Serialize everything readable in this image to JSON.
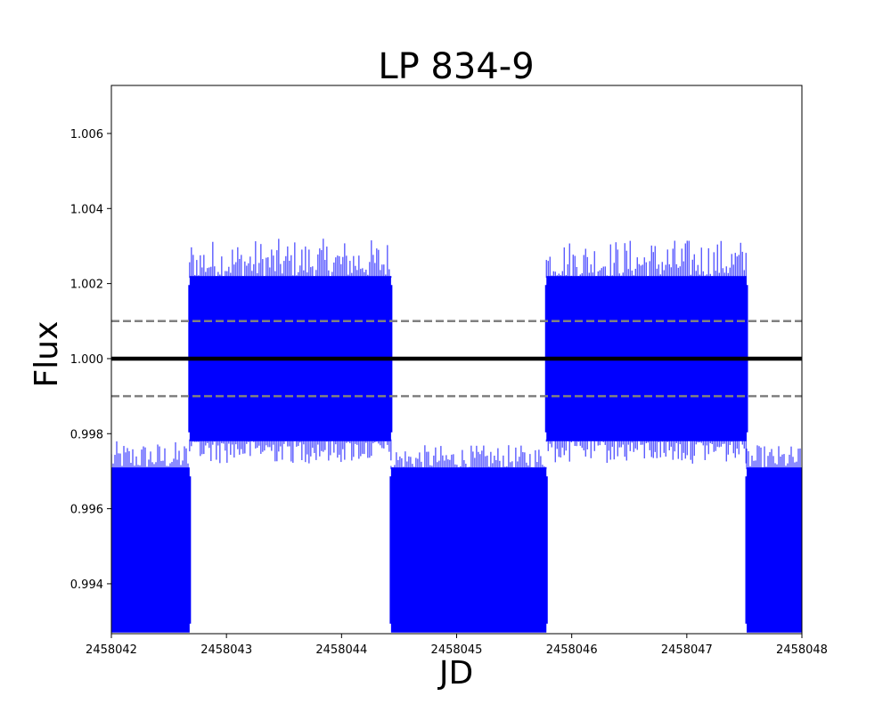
{
  "chart_data": {
    "type": "scatter",
    "title": "LP 834-9",
    "xlabel": "JD",
    "ylabel": "Flux",
    "xlim": [
      2458042,
      2458048
    ],
    "ylim": [
      0.99267,
      1.00728
    ],
    "x_ticks": [
      2458042,
      2458043,
      2458044,
      2458045,
      2458046,
      2458047,
      2458048
    ],
    "y_ticks": [
      0.994,
      0.996,
      0.998,
      1.0,
      1.002,
      1.004,
      1.006
    ],
    "x_tick_labels": [
      "2458042",
      "2458043",
      "2458044",
      "2458045",
      "2458046",
      "2458047",
      "2458048"
    ],
    "y_tick_labels": [
      "0.994",
      "0.996",
      "0.998",
      "1.000",
      "1.002",
      "1.004",
      "1.006"
    ],
    "grid": false,
    "series": [
      {
        "color": "#0000ff",
        "segments": [
          {
            "x_start": 2458042.0,
            "x_end": 2458042.68,
            "center": 0.995,
            "band_low": 0.9927,
            "band_high": 0.9971,
            "spike_high": 0.9978
          },
          {
            "x_start": 2458042.68,
            "x_end": 2458044.43,
            "center": 1.0,
            "band_low": 0.9978,
            "band_high": 1.0022,
            "spike_low": 0.9972,
            "spike_high": 1.0032
          },
          {
            "x_start": 2458044.43,
            "x_end": 2458045.78,
            "center": 0.995,
            "band_low": 0.9927,
            "band_high": 0.9971,
            "spike_high": 0.9977
          },
          {
            "x_start": 2458045.78,
            "x_end": 2458047.52,
            "center": 1.0,
            "band_low": 0.9978,
            "band_high": 1.0022,
            "spike_low": 0.9972,
            "spike_high": 1.0032
          },
          {
            "x_start": 2458047.52,
            "x_end": 2458048.0,
            "center": 0.995,
            "band_low": 0.9927,
            "band_high": 0.9971,
            "spike_high": 0.9977
          }
        ]
      }
    ],
    "reference_lines": [
      {
        "y": 1.0,
        "style": "solid",
        "color": "#000000"
      },
      {
        "y": 1.001,
        "style": "dashed",
        "color": "#808080"
      },
      {
        "y": 0.999,
        "style": "dashed",
        "color": "#808080"
      }
    ]
  }
}
